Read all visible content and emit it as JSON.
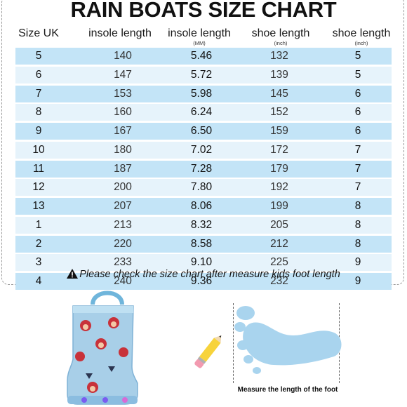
{
  "title": "RAIN BOATS SIZE CHART",
  "columns": [
    {
      "label": "Size UK",
      "unit": ""
    },
    {
      "label": "insole length",
      "unit": ""
    },
    {
      "label": "insole length",
      "unit": "(MM)"
    },
    {
      "label": "shoe length",
      "unit": "(inch)"
    },
    {
      "label": "shoe length",
      "unit": "(inch)"
    }
  ],
  "rows": [
    [
      "5",
      "140",
      "5.46",
      "132",
      "5"
    ],
    [
      "6",
      "147",
      "5.72",
      "139",
      "5"
    ],
    [
      "7",
      "153",
      "5.98",
      "145",
      "6"
    ],
    [
      "8",
      "160",
      "6.24",
      "152",
      "6"
    ],
    [
      "9",
      "167",
      "6.50",
      "159",
      "6"
    ],
    [
      "10",
      "180",
      "7.02",
      "172",
      "7"
    ],
    [
      "11",
      "187",
      "7.28",
      "179",
      "7"
    ],
    [
      "12",
      "200",
      "7.80",
      "192",
      "7"
    ],
    [
      "13",
      "207",
      "8.06",
      "199",
      "8"
    ],
    [
      "1",
      "213",
      "8.32",
      "205",
      "8"
    ],
    [
      "2",
      "220",
      "8.58",
      "212",
      "8"
    ],
    [
      "3",
      "233",
      "9.10",
      "225",
      "9"
    ],
    [
      "4",
      "240",
      "9.36",
      "232",
      "9"
    ]
  ],
  "note": "Please check the size chart after measure kids foot length",
  "caption": "Measure the length of the foot",
  "colors": {
    "row_blue": "#c3e4f7",
    "row_light": "#e6f3fb",
    "foot": "#a9d4ee",
    "boot": "#a8cfe8"
  }
}
